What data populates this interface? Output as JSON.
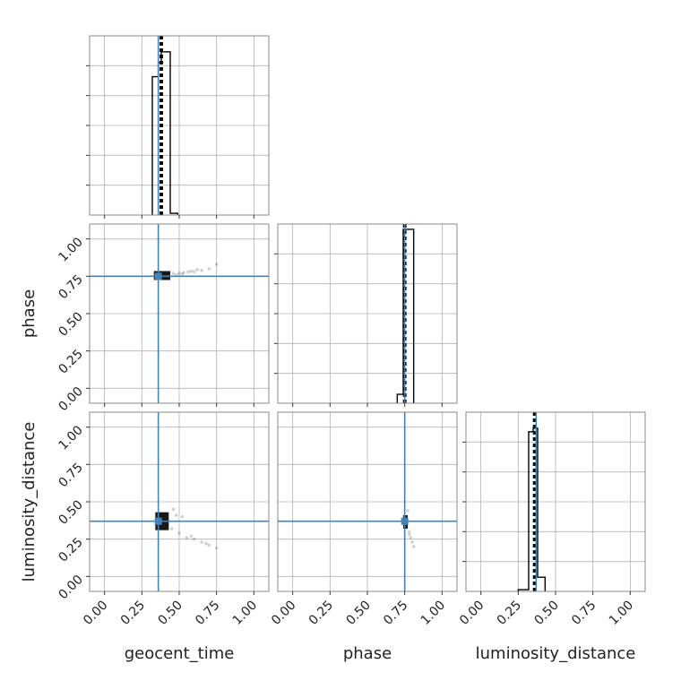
{
  "chart_data": {
    "type": "corner",
    "parameters": [
      "geocent_time",
      "phase",
      "luminosity_distance"
    ],
    "axis_labels": {
      "geocent_time": "geocent_time",
      "phase": "phase",
      "luminosity_distance": "luminosity_distance"
    },
    "tick_values": [
      0.0,
      0.25,
      0.5,
      0.75,
      1.0
    ],
    "tick_labels": [
      "0.00",
      "0.25",
      "0.50",
      "0.75",
      "1.00"
    ],
    "range": [
      -0.1,
      1.1
    ],
    "grid": true,
    "truths": {
      "geocent_time": 0.36,
      "phase": 0.75,
      "luminosity_distance": 0.37
    },
    "truth_color": "#4682b4",
    "hist_color": "#000000",
    "histograms": {
      "geocent_time": {
        "edges": [
          0.32,
          0.36,
          0.38,
          0.44,
          0.49
        ],
        "heights": [
          0.78,
          0.86,
          0.92,
          0.01
        ],
        "quantiles": [
          0.375,
          0.38,
          0.385
        ]
      },
      "phase": {
        "edges": [
          0.7,
          0.74,
          0.76,
          0.81
        ],
        "heights": [
          0.05,
          0.98,
          0.98
        ],
        "quantiles": [
          0.745,
          0.75,
          0.755
        ]
      },
      "luminosity_distance": {
        "edges": [
          0.25,
          0.32,
          0.35,
          0.38,
          0.43
        ],
        "heights": [
          0.01,
          0.9,
          0.92,
          0.08
        ],
        "quantiles": [
          0.355,
          0.36,
          0.365
        ]
      }
    },
    "scatter_2d": [
      {
        "x_param": "geocent_time",
        "y_param": "phase",
        "core": {
          "x": [
            0.33,
            0.44
          ],
          "y": [
            0.725,
            0.785
          ]
        },
        "points": [
          [
            0.46,
            0.77
          ],
          [
            0.5,
            0.77
          ],
          [
            0.53,
            0.775
          ],
          [
            0.56,
            0.78
          ],
          [
            0.6,
            0.78
          ],
          [
            0.65,
            0.79
          ],
          [
            0.7,
            0.8
          ],
          [
            0.75,
            0.83
          ],
          [
            0.48,
            0.76
          ],
          [
            0.52,
            0.765
          ],
          [
            0.58,
            0.785
          ],
          [
            0.62,
            0.795
          ]
        ]
      },
      {
        "x_param": "geocent_time",
        "y_param": "luminosity_distance",
        "core": {
          "x": [
            0.34,
            0.43
          ],
          "y": [
            0.31,
            0.43
          ]
        },
        "points": [
          [
            0.45,
            0.32
          ],
          [
            0.5,
            0.29
          ],
          [
            0.55,
            0.26
          ],
          [
            0.6,
            0.25
          ],
          [
            0.65,
            0.23
          ],
          [
            0.7,
            0.21
          ],
          [
            0.75,
            0.19
          ],
          [
            0.48,
            0.41
          ],
          [
            0.52,
            0.4
          ],
          [
            0.46,
            0.45
          ],
          [
            0.58,
            0.27
          ],
          [
            0.68,
            0.22
          ]
        ]
      },
      {
        "x_param": "phase",
        "y_param": "luminosity_distance",
        "core": {
          "x": [
            0.74,
            0.77
          ],
          "y": [
            0.32,
            0.41
          ]
        },
        "points": [
          [
            0.78,
            0.3
          ],
          [
            0.79,
            0.26
          ],
          [
            0.8,
            0.23
          ],
          [
            0.81,
            0.2
          ],
          [
            0.77,
            0.44
          ],
          [
            0.78,
            0.28
          ]
        ]
      }
    ]
  }
}
